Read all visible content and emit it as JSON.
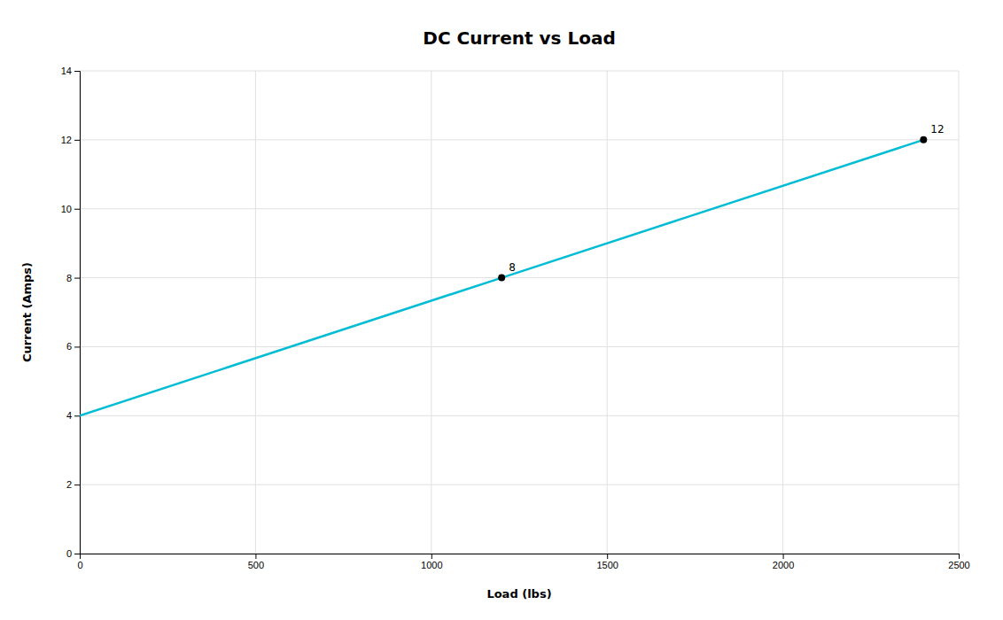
{
  "chart_data": {
    "type": "line",
    "title": "DC Current vs Load",
    "x_label": "Load (lbs)",
    "y_label": "Current (Amps)",
    "x": [
      0,
      1200,
      2400
    ],
    "values": [
      4,
      8,
      12
    ],
    "color": "#00BCD4",
    "annotations": [
      {
        "x": 1200,
        "y": 8,
        "label": "8",
        "color": "#000000"
      },
      {
        "x": 2400,
        "y": 12,
        "label": "12",
        "color": "#000000"
      }
    ],
    "xlim": [
      0,
      2500
    ],
    "ylim": [
      0,
      14
    ],
    "xticks": [
      0,
      500,
      1000,
      1500,
      2000,
      2500
    ],
    "yticks": [
      0,
      2,
      4,
      6,
      8,
      10,
      12,
      14
    ],
    "grid": true
  }
}
